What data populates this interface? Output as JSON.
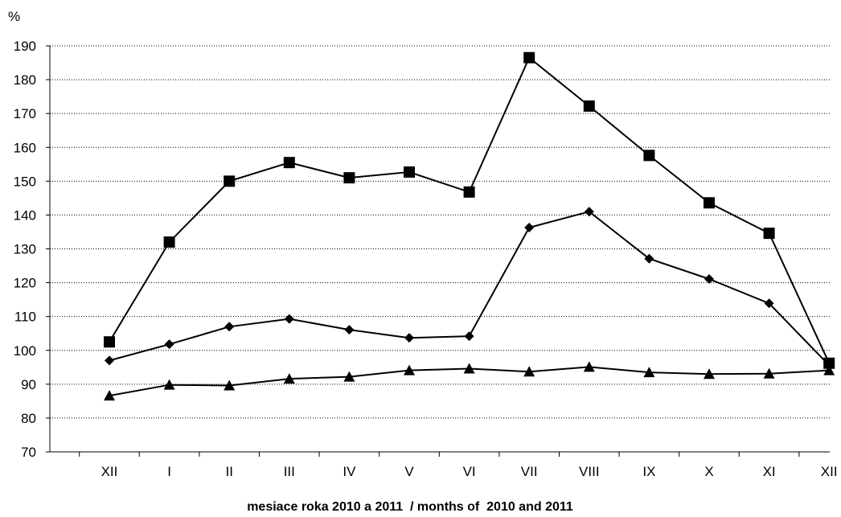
{
  "chart_data": {
    "type": "line",
    "ylabel": "%",
    "xlabel": "mesiace roka 2010 a 2011  / months of  2010 and 2011",
    "ylim": [
      70,
      190
    ],
    "yticks": [
      70,
      80,
      90,
      100,
      110,
      120,
      130,
      140,
      150,
      160,
      170,
      180,
      190
    ],
    "categories": [
      "XII",
      "I",
      "II",
      "III",
      "IV",
      "V",
      "VI",
      "VII",
      "VIII",
      "IX",
      "X",
      "XI",
      "XII"
    ],
    "grid": true,
    "legend": "none",
    "series": [
      {
        "marker": "square",
        "color": "#000000",
        "values": [
          102.5,
          132,
          150,
          155.5,
          151,
          152.7,
          146.8,
          186.5,
          172.2,
          157.6,
          143.6,
          134.6,
          96.2
        ]
      },
      {
        "marker": "diamond",
        "color": "#000000",
        "values": [
          97,
          101.8,
          107,
          109.3,
          106.1,
          103.7,
          104.2,
          136.3,
          141,
          127.1,
          121.1,
          113.9,
          95.6
        ]
      },
      {
        "marker": "triangle",
        "color": "#000000",
        "values": [
          86.6,
          89.8,
          89.6,
          91.6,
          92.2,
          94.1,
          94.6,
          93.7,
          95.1,
          93.5,
          93,
          93.1,
          94.1
        ]
      }
    ]
  }
}
